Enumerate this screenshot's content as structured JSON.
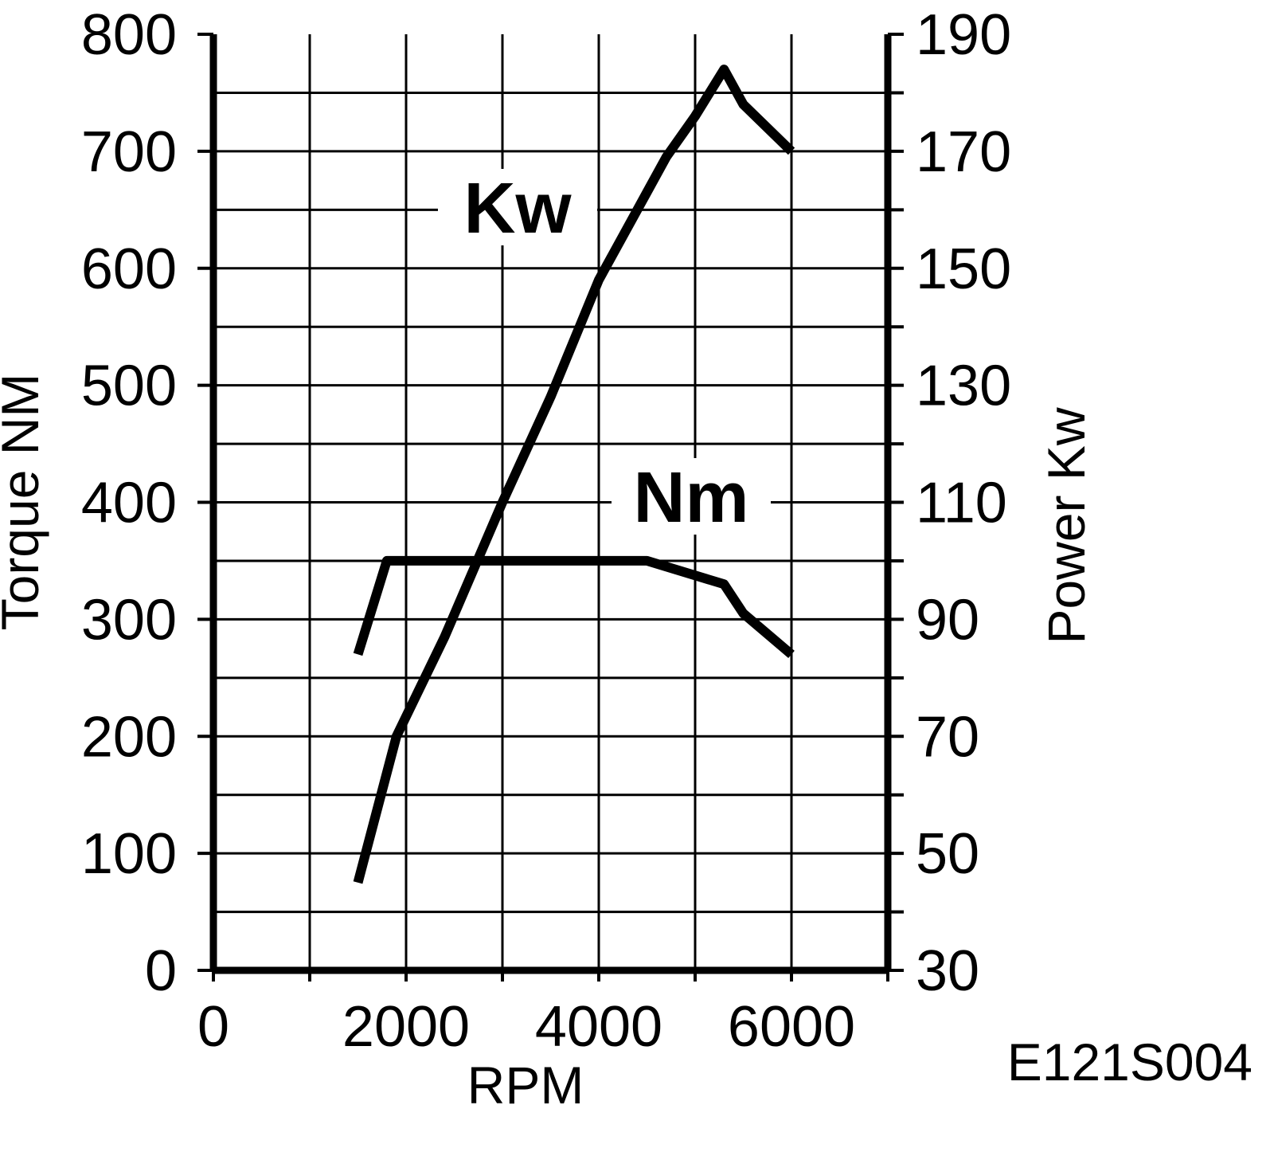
{
  "chart_data": {
    "type": "line",
    "xlabel": "RPM",
    "ylabel_left": "Torque NM",
    "ylabel_right": "Power Kw",
    "reference_code": "E121S004",
    "x_range": [
      0,
      7000
    ],
    "x_ticks": [
      0,
      2000,
      4000,
      6000
    ],
    "y_left_range": [
      0,
      800
    ],
    "y_left_ticks": [
      0,
      100,
      200,
      300,
      400,
      500,
      600,
      700,
      800
    ],
    "y_right_range": [
      30,
      190
    ],
    "y_right_ticks": [
      30,
      50,
      70,
      90,
      110,
      130,
      150,
      170,
      190
    ],
    "grid": true,
    "series": [
      {
        "name": "Kw",
        "axis": "right",
        "points": [
          [
            1500,
            45
          ],
          [
            1900,
            70
          ],
          [
            2400,
            87
          ],
          [
            3000,
            110
          ],
          [
            3500,
            128
          ],
          [
            4000,
            148
          ],
          [
            4500,
            163
          ],
          [
            4700,
            169
          ],
          [
            5000,
            176
          ],
          [
            5300,
            184
          ],
          [
            5500,
            178
          ],
          [
            6000,
            170
          ]
        ]
      },
      {
        "name": "Nm",
        "axis": "left",
        "points": [
          [
            1500,
            270
          ],
          [
            1800,
            350
          ],
          [
            2500,
            350
          ],
          [
            3500,
            350
          ],
          [
            4500,
            350
          ],
          [
            5300,
            330
          ],
          [
            5500,
            305
          ],
          [
            6000,
            270
          ]
        ]
      }
    ]
  }
}
